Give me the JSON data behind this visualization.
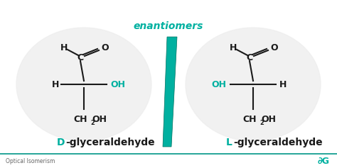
{
  "bg_color": "#ffffff",
  "teal": "#00b0a0",
  "black": "#1a1a1a",
  "title_text": "Optical Isomerism",
  "enantiomers_text": "enantiomers",
  "d_label": "D",
  "d_label_rest": "-glyceraldehyde",
  "l_label": "L",
  "l_label_rest": "-glyceraldehyde",
  "footer_line_color": "#009688",
  "footer_text_color": "#666666",
  "circle_color": "#eeeeee"
}
